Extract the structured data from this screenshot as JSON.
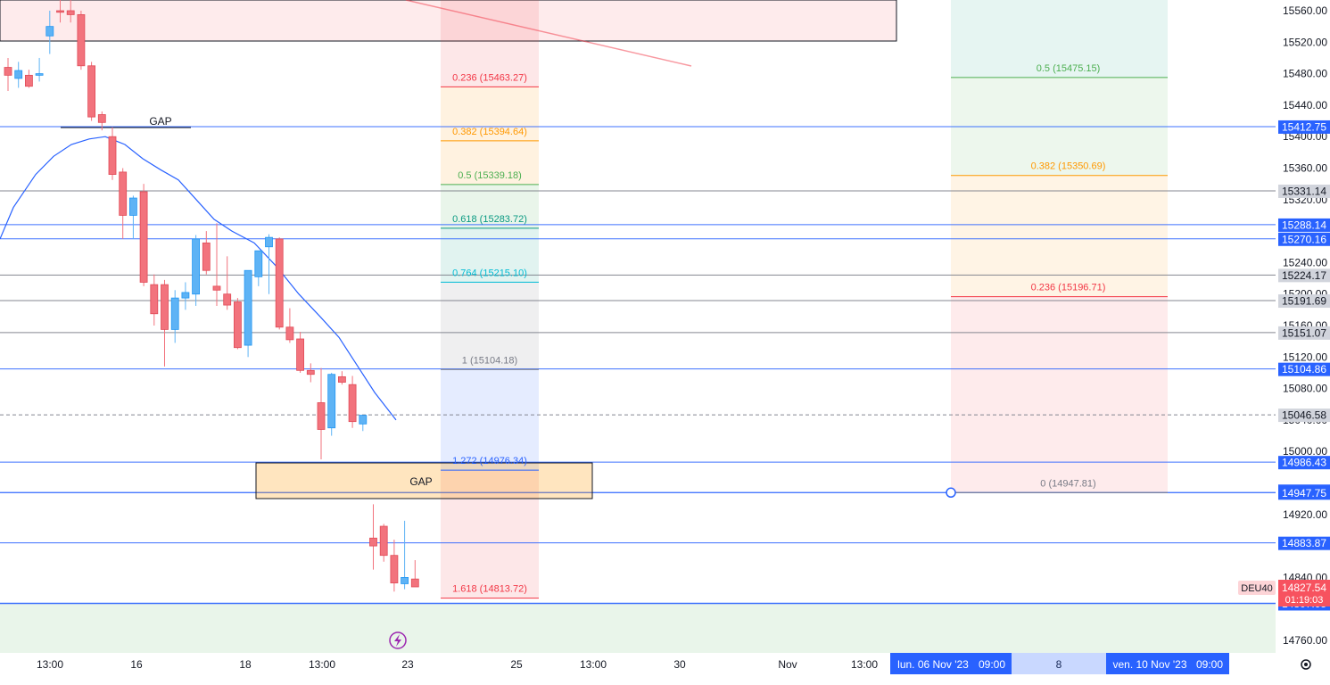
{
  "chart_data": {
    "type": "candlestick",
    "symbol": "DEU40",
    "last_price": "14827.54",
    "countdown": "01:19:03",
    "ylim": [
      14728,
      15580
    ],
    "y_ticks": [
      "14760.00",
      "14840.00",
      "14920.00",
      "15000.00",
      "15040.00",
      "15080.00",
      "15120.00",
      "15160.00",
      "15200.00",
      "15240.00",
      "15320.00",
      "15360.00",
      "15400.00",
      "15440.00",
      "15480.00",
      "15520.00",
      "15560.00"
    ],
    "x_ticks": [
      "13:00",
      "16",
      "18",
      "13:00",
      "23",
      "25",
      "13:00",
      "30",
      "Nov",
      "13:00",
      "8"
    ],
    "x_range_labels": [
      "lun. 06 Nov '23",
      "09:00",
      "ven. 10 Nov '23",
      "09:00"
    ],
    "candles": [
      {
        "o": 15488,
        "h": 15500,
        "l": 15458,
        "c": 15478
      },
      {
        "o": 15474,
        "h": 15495,
        "l": 15462,
        "c": 15484
      },
      {
        "o": 15478,
        "h": 15485,
        "l": 15462,
        "c": 15464
      },
      {
        "o": 15478,
        "h": 15500,
        "l": 15470,
        "c": 15480
      },
      {
        "o": 15528,
        "h": 15560,
        "l": 15505,
        "c": 15540
      },
      {
        "o": 15560,
        "h": 15580,
        "l": 15545,
        "c": 15558
      },
      {
        "o": 15560,
        "h": 15575,
        "l": 15545,
        "c": 15555
      },
      {
        "o": 15555,
        "h": 15560,
        "l": 15485,
        "c": 15490
      },
      {
        "o": 15490,
        "h": 15495,
        "l": 15420,
        "c": 15425
      },
      {
        "o": 15428,
        "h": 15432,
        "l": 15408,
        "c": 15418
      },
      {
        "o": 15400,
        "h": 15412,
        "l": 15345,
        "c": 15352
      },
      {
        "o": 15355,
        "h": 15360,
        "l": 15270,
        "c": 15300
      },
      {
        "o": 15300,
        "h": 15325,
        "l": 15270,
        "c": 15322
      },
      {
        "o": 15330,
        "h": 15340,
        "l": 15210,
        "c": 15215
      },
      {
        "o": 15212,
        "h": 15225,
        "l": 15160,
        "c": 15175
      },
      {
        "o": 15212,
        "h": 15218,
        "l": 15108,
        "c": 15155
      },
      {
        "o": 15155,
        "h": 15205,
        "l": 15138,
        "c": 15195
      },
      {
        "o": 15195,
        "h": 15215,
        "l": 15180,
        "c": 15202
      },
      {
        "o": 15200,
        "h": 15275,
        "l": 15185,
        "c": 15270
      },
      {
        "o": 15265,
        "h": 15280,
        "l": 15225,
        "c": 15230
      },
      {
        "o": 15210,
        "h": 15290,
        "l": 15185,
        "c": 15205
      },
      {
        "o": 15200,
        "h": 15248,
        "l": 15180,
        "c": 15186
      },
      {
        "o": 15190,
        "h": 15195,
        "l": 15130,
        "c": 15132
      },
      {
        "o": 15135,
        "h": 15230,
        "l": 15120,
        "c": 15230
      },
      {
        "o": 15222,
        "h": 15255,
        "l": 15210,
        "c": 15255
      },
      {
        "o": 15260,
        "h": 15276,
        "l": 15200,
        "c": 15272
      },
      {
        "o": 15270,
        "h": 15272,
        "l": 15155,
        "c": 15158
      },
      {
        "o": 15158,
        "h": 15182,
        "l": 15138,
        "c": 15142
      },
      {
        "o": 15143,
        "h": 15152,
        "l": 15100,
        "c": 15103
      },
      {
        "o": 15103,
        "h": 15112,
        "l": 15088,
        "c": 15098
      },
      {
        "o": 15062,
        "h": 15106,
        "l": 14990,
        "c": 15028
      },
      {
        "o": 15030,
        "h": 15100,
        "l": 15020,
        "c": 15098
      },
      {
        "o": 15095,
        "h": 15102,
        "l": 15085,
        "c": 15088
      },
      {
        "o": 15085,
        "h": 15096,
        "l": 15030,
        "c": 15038
      },
      {
        "o": 15035,
        "h": 15045,
        "l": 15026,
        "c": 15046
      },
      {
        "o": 14890,
        "h": 14933,
        "l": 14850,
        "c": 14880
      },
      {
        "o": 14905,
        "h": 14908,
        "l": 14860,
        "c": 14868
      },
      {
        "o": 14868,
        "h": 14888,
        "l": 14822,
        "c": 14833
      },
      {
        "o": 14832,
        "h": 14912,
        "l": 14825,
        "c": 14840
      },
      {
        "o": 14838,
        "h": 14862,
        "l": 14828,
        "c": 14828
      }
    ],
    "moving_average": [
      [
        0,
        15270
      ],
      [
        15,
        15310
      ],
      [
        40,
        15352
      ],
      [
        60,
        15375
      ],
      [
        80,
        15390
      ],
      [
        100,
        15397
      ],
      [
        118,
        15400
      ],
      [
        140,
        15390
      ],
      [
        160,
        15372
      ],
      [
        180,
        15358
      ],
      [
        200,
        15345
      ],
      [
        220,
        15320
      ],
      [
        240,
        15295
      ],
      [
        260,
        15280
      ],
      [
        285,
        15265
      ],
      [
        310,
        15235
      ],
      [
        335,
        15200
      ],
      [
        360,
        15170
      ],
      [
        380,
        15145
      ],
      [
        400,
        15110
      ],
      [
        420,
        15075
      ],
      [
        444,
        15040
      ]
    ],
    "fib_left": [
      {
        "ratio": "0.236",
        "price": "15463.27",
        "label": "0.236 (15463.27)",
        "color": "#f23645"
      },
      {
        "ratio": "0.382",
        "price": "15394.64",
        "label": "0.382 (15394.64)",
        "color": "#ff9800"
      },
      {
        "ratio": "0.5",
        "price": "15339.18",
        "label": "0.5 (15339.18)",
        "color": "#4caf50"
      },
      {
        "ratio": "0.618",
        "price": "15283.72",
        "label": "0.618 (15283.72)",
        "color": "#089981"
      },
      {
        "ratio": "0.764",
        "price": "15215.10",
        "label": "0.764 (15215.10)",
        "color": "#00bcd4"
      },
      {
        "ratio": "1",
        "price": "15104.18",
        "label": "1 (15104.18)",
        "color": "#787b86"
      },
      {
        "ratio": "1.272",
        "price": "14976.34",
        "label": "1.272 (14976.34)",
        "color": "#2962ff"
      },
      {
        "ratio": "1.618",
        "price": "14813.72",
        "label": "1.618 (14813.72)",
        "color": "#f23645"
      }
    ],
    "fib_right": [
      {
        "ratio": "0.5",
        "price": "15475.15",
        "label": "0.5 (15475.15)",
        "color": "#4caf50"
      },
      {
        "ratio": "0.382",
        "price": "15350.69",
        "label": "0.382 (15350.69)",
        "color": "#ff9800"
      },
      {
        "ratio": "0.236",
        "price": "15196.71",
        "label": "0.236 (15196.71)",
        "color": "#f23645"
      },
      {
        "ratio": "0",
        "price": "14947.81",
        "label": "0 (14947.81)",
        "color": "#787b86"
      }
    ],
    "horizontal_lines": [
      {
        "price": "15412.75",
        "color": "#2962ff"
      },
      {
        "price": "15331.14",
        "color": "#787b86"
      },
      {
        "price": "15288.14",
        "color": "#2962ff"
      },
      {
        "price": "15270.16",
        "color": "#2962ff"
      },
      {
        "price": "15224.17",
        "color": "#787b86"
      },
      {
        "price": "15191.69",
        "color": "#787b86"
      },
      {
        "price": "15151.07",
        "color": "#787b86"
      },
      {
        "price": "15104.86",
        "color": "#2962ff"
      },
      {
        "price": "15046.58",
        "color": "#787b86"
      },
      {
        "price": "14986.43",
        "color": "#2962ff"
      },
      {
        "price": "14947.81",
        "color": "#2962ff"
      },
      {
        "price": "14947.75",
        "color": "#2962ff"
      },
      {
        "price": "14883.87",
        "color": "#2962ff"
      },
      {
        "price": "14807.05",
        "color": "#2962ff"
      }
    ],
    "annotations": [
      "GAP",
      "GAP"
    ]
  },
  "colors": {
    "up": "#5eb3f5",
    "down": "#f2737d",
    "ma": "#2962ff",
    "axis_text": "#131722",
    "badge_blue": "#2962ff",
    "badge_gray": "#d1d4dc",
    "badge_red": "#f7525f"
  },
  "icons": [
    "lightning-icon",
    "settings-icon"
  ]
}
